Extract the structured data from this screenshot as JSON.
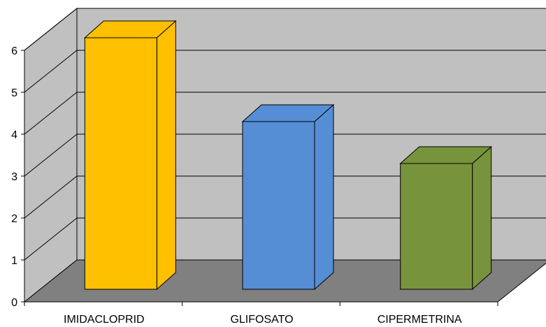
{
  "chart_data": {
    "type": "bar",
    "title": "",
    "xlabel": "",
    "ylabel": "",
    "categories": [
      "IMIDACLOPRID",
      "GLIFOSATO",
      "CIPERMETRINA"
    ],
    "values": [
      6,
      4,
      3
    ],
    "colors": [
      "#FFC000",
      "#558ED5",
      "#77933C"
    ],
    "ylim": [
      0,
      6
    ],
    "yticks": [
      "0",
      "1",
      "2",
      "3",
      "4",
      "5",
      "6"
    ],
    "grid": true,
    "legend": "none",
    "style": "3d-column",
    "wall_color": "#C0C0C0",
    "floor_color": "#808080"
  }
}
